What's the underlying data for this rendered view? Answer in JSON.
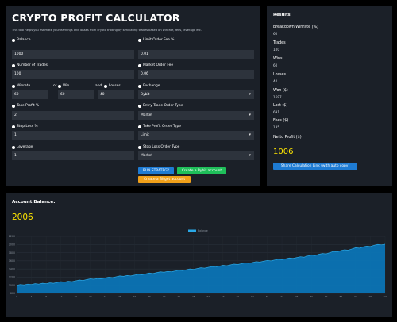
{
  "calculator": {
    "title": "CRYPTO PROFIT CALCULATOR",
    "subtitle": "This tool helps you estimate your earnings and losses from crypto trading by simulating trades based on winrate, fees, leverage etc.",
    "balance": {
      "label": "Balance",
      "value": "1000"
    },
    "number_of_trades": {
      "label": "Number of Trades",
      "value": "100"
    },
    "winrate": {
      "label": "Winrate",
      "value": "60"
    },
    "or_label": "or",
    "win": {
      "label": "Win",
      "value": "60"
    },
    "and_label": "and",
    "losses": {
      "label": "Losses",
      "value": "40"
    },
    "take_profit": {
      "label": "Take Profit %",
      "value": "2"
    },
    "stop_loss": {
      "label": "Stop Loss %",
      "value": "1"
    },
    "leverage": {
      "label": "Leverage",
      "value": "1"
    },
    "limit_order_fee": {
      "label": "Limit Order Fee %",
      "value": "0.01"
    },
    "market_order_fee": {
      "label": "Market Order Fee",
      "value": "0.06"
    },
    "exchange": {
      "label": "Exchange",
      "value": "Bybit"
    },
    "entry_order_type": {
      "label": "Entry Trade Order Type",
      "value": "Market"
    },
    "take_profit_order_type": {
      "label": "Take Profit Order Type",
      "value": "Limit"
    },
    "stop_loss_order_type": {
      "label": "Stop Loss Order Type",
      "value": "Market"
    },
    "run_button": "RUN STRATEGY",
    "bybit_button": "Create a Bybit account",
    "bitget_button": "Create a Bitget account"
  },
  "results": {
    "title": "Results",
    "breakdown_winrate": {
      "label": "Breakdown Winrate (%)",
      "value": "60"
    },
    "trades": {
      "label": "Trades",
      "value": "100"
    },
    "wins": {
      "label": "Wins",
      "value": "60"
    },
    "losses": {
      "label": "Losses",
      "value": "40"
    },
    "won": {
      "label": "Won ($)",
      "value": "1697"
    },
    "lost": {
      "label": "Lost ($)",
      "value": "691"
    },
    "fees": {
      "label": "Fees ($)",
      "value": "135"
    },
    "netto_profit": {
      "label": "Netto Profit ($)",
      "value": "1006"
    },
    "share_button": "Share Calculation Link (with auto copy)"
  },
  "account_balance": {
    "title": "Account Balance:",
    "value": "2006"
  },
  "colors": {
    "panel_bg": "#1b2028",
    "accent_yellow": "#ffe600",
    "area_fill": "#0b74b5",
    "area_line": "#2aa8e6"
  },
  "chart_data": {
    "type": "area",
    "series": [
      {
        "name": "Balance"
      }
    ],
    "ylim": [
      800,
      2200
    ],
    "yticks": [
      800,
      1000,
      1200,
      1400,
      1600,
      1800,
      2000,
      2200
    ],
    "grid": true,
    "legend": "top-center",
    "x": [
      0,
      1,
      2,
      3,
      4,
      5,
      6,
      7,
      8,
      9,
      10,
      11,
      12,
      13,
      14,
      15,
      16,
      17,
      18,
      19,
      20,
      21,
      22,
      23,
      24,
      25,
      26,
      27,
      28,
      29,
      30,
      31,
      32,
      33,
      34,
      35,
      36,
      37,
      38,
      39,
      40,
      41,
      42,
      43,
      44,
      45,
      46,
      47,
      48,
      49,
      50,
      51,
      52,
      53,
      54,
      55,
      56,
      57,
      58,
      59,
      60,
      61,
      62,
      63,
      64,
      65,
      66,
      67,
      68,
      69,
      70,
      71,
      72,
      73,
      74,
      75,
      76,
      77,
      78,
      79,
      80,
      81,
      82,
      83,
      84,
      85,
      86,
      87,
      88,
      89,
      90,
      91,
      92,
      93,
      94,
      95,
      96,
      97,
      98,
      99,
      100
    ],
    "values": [
      1000,
      1020,
      1010,
      1030,
      1020,
      1040,
      1030,
      1050,
      1040,
      1060,
      1050,
      1070,
      1090,
      1080,
      1100,
      1090,
      1110,
      1130,
      1120,
      1140,
      1160,
      1150,
      1170,
      1160,
      1180,
      1200,
      1190,
      1210,
      1230,
      1220,
      1240,
      1230,
      1250,
      1270,
      1260,
      1280,
      1300,
      1290,
      1310,
      1330,
      1320,
      1340,
      1330,
      1350,
      1370,
      1360,
      1380,
      1400,
      1390,
      1410,
      1430,
      1420,
      1440,
      1460,
      1450,
      1470,
      1490,
      1480,
      1500,
      1520,
      1510,
      1530,
      1550,
      1540,
      1560,
      1580,
      1570,
      1590,
      1610,
      1600,
      1620,
      1640,
      1630,
      1650,
      1670,
      1660,
      1680,
      1700,
      1690,
      1720,
      1740,
      1730,
      1760,
      1780,
      1770,
      1800,
      1830,
      1820,
      1850,
      1870,
      1860,
      1890,
      1920,
      1910,
      1940,
      1960,
      1950,
      1980,
      2000,
      1990,
      2006
    ]
  }
}
